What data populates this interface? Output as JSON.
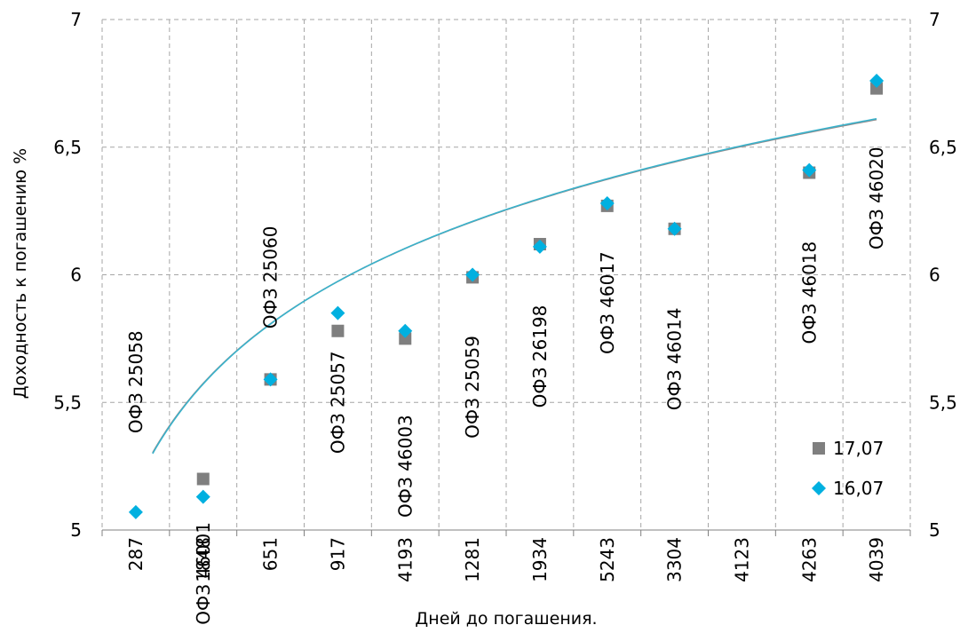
{
  "chart_data": {
    "type": "scatter",
    "xlabel": "Дней до погашения.",
    "ylabel": "Доходность к погашению %",
    "ylim": [
      5,
      7
    ],
    "y_ticks": [
      "5",
      "5,5",
      "6",
      "6,5",
      "7"
    ],
    "y_tick_values": [
      5,
      5.5,
      6,
      6.5,
      7
    ],
    "categories": [
      "287",
      "1848",
      "651",
      "917",
      "4193",
      "1281",
      "1934",
      "5243",
      "3304",
      "4123",
      "4263",
      "4039"
    ],
    "grid": true,
    "legend_position": "bottom-right",
    "bond_labels": [
      {
        "category_index": 0,
        "text": "ОФЗ 25058",
        "y": 5.58
      },
      {
        "category_index": 1,
        "text": "ОФЗ 46001",
        "y": 4.83
      },
      {
        "category_index": 2,
        "text": "ОФЗ 25060",
        "y": 5.99
      },
      {
        "category_index": 3,
        "text": "ОФЗ 25057",
        "y": 5.5
      },
      {
        "category_index": 4,
        "text": "ОФЗ 46003",
        "y": 5.25
      },
      {
        "category_index": 5,
        "text": "ОФЗ 25059",
        "y": 5.56
      },
      {
        "category_index": 6,
        "text": "ОФЗ 26198",
        "y": 5.68
      },
      {
        "category_index": 7,
        "text": "ОФЗ 46017",
        "y": 5.89
      },
      {
        "category_index": 8,
        "text": "ОФЗ 46014",
        "y": 5.67
      },
      {
        "category_index": 10,
        "text": "ОФЗ 46018",
        "y": 5.93
      },
      {
        "category_index": 11,
        "text": "ОФЗ 46020",
        "y": 6.3
      }
    ],
    "series": [
      {
        "name": "17,07",
        "marker": "square",
        "color": "#7f7f7f",
        "values": [
          null,
          5.2,
          5.59,
          5.78,
          5.75,
          5.99,
          6.12,
          6.27,
          6.18,
          null,
          6.4,
          6.73
        ]
      },
      {
        "name": "16,07",
        "marker": "diamond",
        "color": "#00b0e0",
        "values": [
          5.07,
          5.13,
          5.59,
          5.85,
          5.78,
          6.0,
          6.11,
          6.28,
          6.18,
          null,
          6.41,
          6.76
        ]
      }
    ],
    "trendlines": [
      {
        "type": "logarithmic",
        "series_index": 0,
        "color": "#948a8a",
        "a": 5.174,
        "b": 0.5771
      },
      {
        "type": "logarithmic",
        "series_index": 1,
        "color": "#39b2cb",
        "a": 5.17,
        "b": 0.58
      }
    ]
  }
}
